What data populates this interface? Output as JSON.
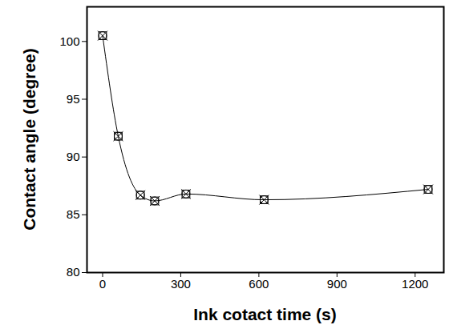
{
  "chart_data": {
    "type": "line",
    "x_label": "Ink cotact time (s)",
    "y_label": "Contact angle (degree)",
    "x": [
      0,
      60,
      145,
      200,
      320,
      620,
      1250
    ],
    "values": [
      100.5,
      91.8,
      86.7,
      86.2,
      86.8,
      86.3,
      87.2
    ],
    "color": "#000000",
    "marker": "crossed-square",
    "line_style": "solid",
    "xlim": [
      -60,
      1310
    ],
    "xticks": [
      0,
      300,
      600,
      900,
      1200
    ],
    "ylim": [
      80,
      103
    ],
    "yticks": [
      80,
      85,
      90,
      95,
      100
    ],
    "grid": false
  }
}
